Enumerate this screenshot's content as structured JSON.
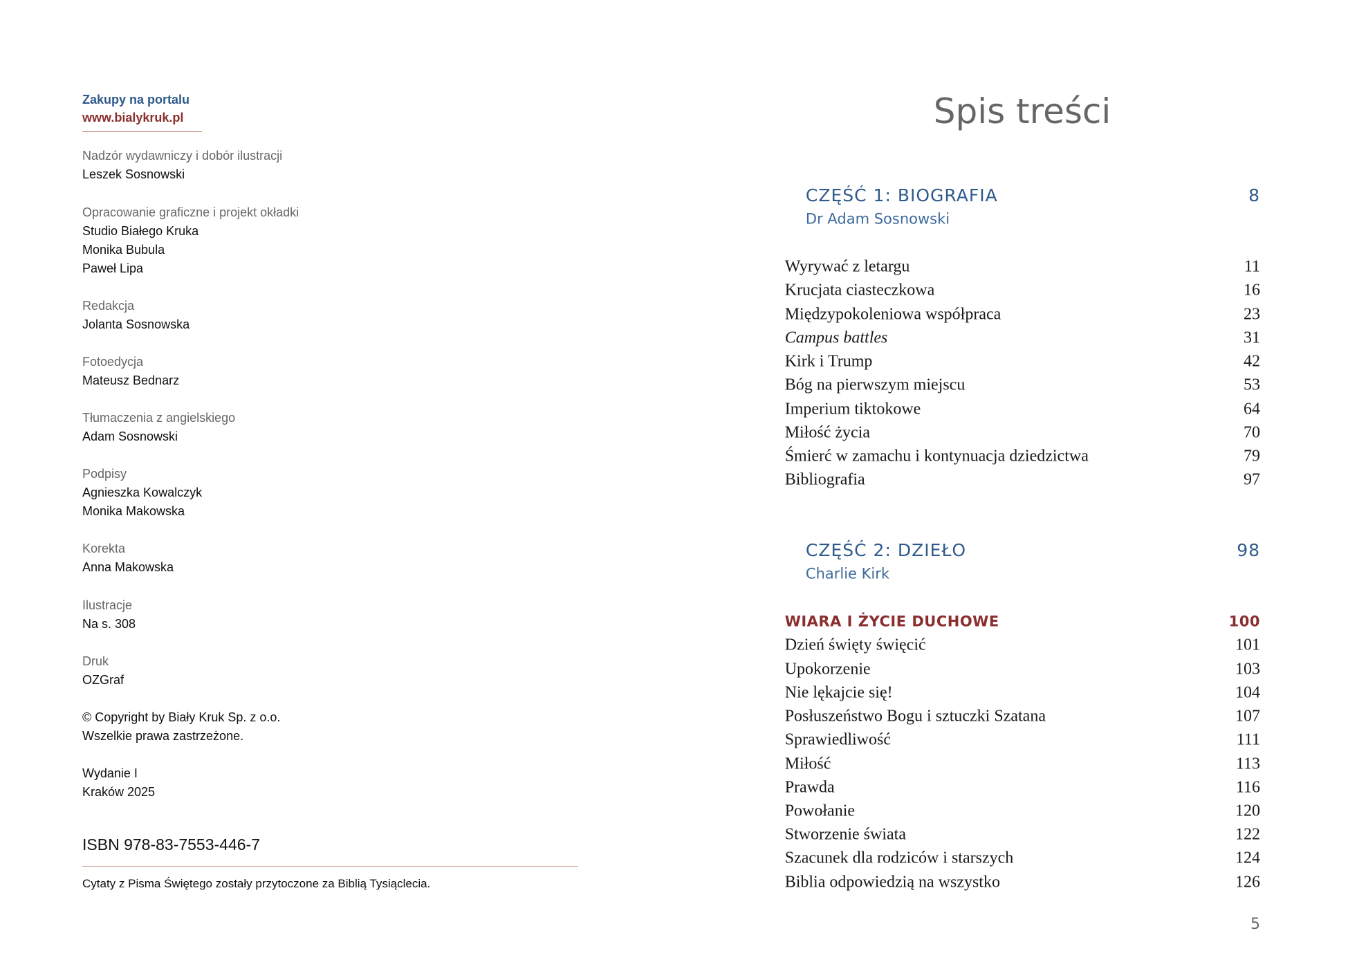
{
  "left": {
    "purchase": {
      "label": "Zakupy na portalu",
      "url": "www.bialykruk.pl"
    },
    "credits": [
      {
        "role": "Nadzór wydawniczy i dobór ilustracji",
        "names": [
          "Leszek Sosnowski"
        ]
      },
      {
        "role": "Opracowanie graficzne i projekt okładki",
        "names": [
          "Studio Białego Kruka",
          "Monika Bubula",
          "Paweł Lipa"
        ]
      },
      {
        "role": "Redakcja",
        "names": [
          "Jolanta Sosnowska"
        ]
      },
      {
        "role": "Fotoedycja",
        "names": [
          "Mateusz Bednarz"
        ]
      },
      {
        "role": "Tłumaczenia z angielskiego",
        "names": [
          "Adam Sosnowski"
        ]
      },
      {
        "role": "Podpisy",
        "names": [
          "Agnieszka Kowalczyk",
          "Monika Makowska"
        ]
      },
      {
        "role": "Korekta",
        "names": [
          "Anna Makowska"
        ]
      },
      {
        "role": "Ilustracje",
        "names": [
          "Na s. 308"
        ]
      },
      {
        "role": "Druk",
        "names": [
          "OZGraf"
        ]
      }
    ],
    "copyright": [
      "© Copyright by Biały Kruk Sp. z o.o.",
      "Wszelkie prawa zastrzeżone."
    ],
    "edition": [
      "Wydanie I",
      "Kraków 2025"
    ],
    "isbn": "ISBN 978-83-7553-446-7",
    "note": "Cytaty z Pisma Świętego zostały przytoczone za Biblią Tysiąclecia."
  },
  "toc": {
    "title": "Spis treści",
    "parts": [
      {
        "heading": "CZĘŚĆ 1: BIOGRAFIA",
        "page": 8,
        "author": "Dr Adam Sosnowski",
        "sections": [
          {
            "entries": [
              {
                "title": "Wyrywać z letargu",
                "page": 11
              },
              {
                "title": "Krucjata ciasteczkowa",
                "page": 16
              },
              {
                "title": "Międzypokoleniowa współpraca",
                "page": 23
              },
              {
                "title": "Campus battles",
                "page": 31,
                "italic": true
              },
              {
                "title": "Kirk i Trump",
                "page": 42
              },
              {
                "title": "Bóg na pierwszym miejscu",
                "page": 53
              },
              {
                "title": "Imperium tiktokowe",
                "page": 64
              },
              {
                "title": "Miłość życia",
                "page": 70
              },
              {
                "title": "Śmierć w zamachu i kontynuacja dziedzictwa",
                "page": 79
              },
              {
                "title": "Bibliografia",
                "page": 97
              }
            ]
          }
        ]
      },
      {
        "heading": "CZĘŚĆ 2: DZIEŁO",
        "page": 98,
        "author": "Charlie Kirk",
        "sections": [
          {
            "heading": "WIARA I ŻYCIE DUCHOWE",
            "page": 100,
            "entries": [
              {
                "title": "Dzień święty święcić",
                "page": 101
              },
              {
                "title": "Upokorzenie",
                "page": 103
              },
              {
                "title": "Nie lękajcie się!",
                "page": 104
              },
              {
                "title": "Posłuszeństwo Bogu i sztuczki Szatana",
                "page": 107
              },
              {
                "title": "Sprawiedliwość",
                "page": 111
              },
              {
                "title": "Miłość",
                "page": 113
              },
              {
                "title": "Prawda",
                "page": 116
              },
              {
                "title": "Powołanie",
                "page": 120
              },
              {
                "title": "Stworzenie świata",
                "page": 122
              },
              {
                "title": "Szacunek dla rodziców i starszych",
                "page": 124
              },
              {
                "title": "Biblia odpowiedzią na wszystko",
                "page": 126
              }
            ]
          }
        ]
      }
    ]
  },
  "page_number": 5
}
